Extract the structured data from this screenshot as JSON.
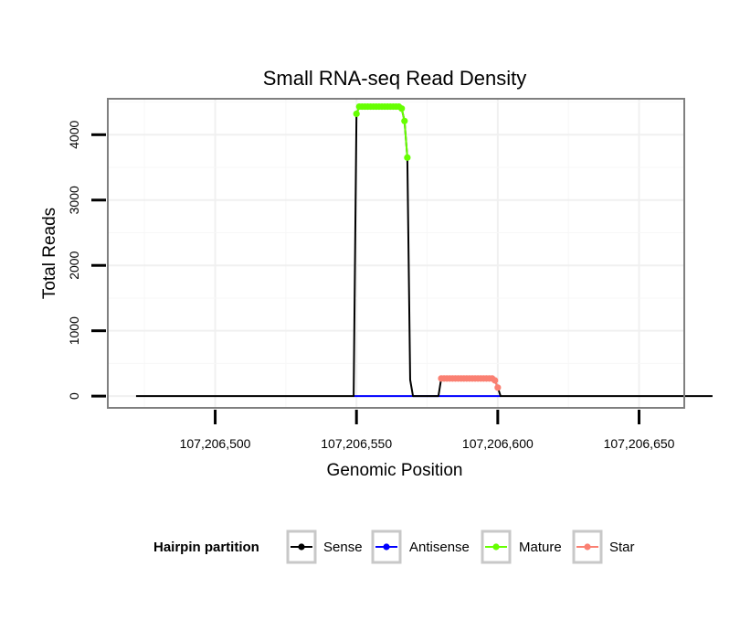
{
  "chart_data": {
    "type": "line",
    "title": "Small RNA-seq Read Density",
    "xlabel": "Genomic Position",
    "ylabel": "Total Reads",
    "xlim": [
      107206462,
      107206666
    ],
    "ylim": [
      -180,
      4550
    ],
    "x_ticks": [
      107206500,
      107206550,
      107206600,
      107206650
    ],
    "x_tick_labels": [
      "107,206,500",
      "107,206,550",
      "107,206,600",
      "107,206,650"
    ],
    "y_ticks": [
      0,
      1000,
      2000,
      3000,
      4000
    ],
    "y_tick_labels": [
      "0",
      "1000",
      "2000",
      "3000",
      "4000"
    ],
    "grid": true,
    "legend_position": "bottom",
    "legend_title": "Hairpin partition",
    "colors": {
      "Sense": "#000000",
      "Antisense": "#0000ff",
      "Mature": "#66ff00",
      "Star": "#fa8072"
    },
    "series": [
      {
        "name": "Sense",
        "markers": false,
        "x": [
          107206472,
          107206549,
          107206550,
          107206551,
          107206552,
          107206553,
          107206554,
          107206555,
          107206556,
          107206557,
          107206558,
          107206559,
          107206560,
          107206561,
          107206562,
          107206563,
          107206564,
          107206565,
          107206566,
          107206567,
          107206568,
          107206569,
          107206570,
          107206579,
          107206580,
          107206581,
          107206582,
          107206583,
          107206584,
          107206585,
          107206586,
          107206587,
          107206588,
          107206589,
          107206590,
          107206591,
          107206592,
          107206593,
          107206594,
          107206595,
          107206596,
          107206597,
          107206598,
          107206599,
          107206600,
          107206601,
          107206676
        ],
        "values": [
          0,
          0,
          4320,
          4430,
          4430,
          4430,
          4430,
          4430,
          4430,
          4430,
          4430,
          4430,
          4430,
          4430,
          4430,
          4430,
          4430,
          4430,
          4400,
          4210,
          3650,
          250,
          0,
          0,
          270,
          270,
          270,
          270,
          270,
          270,
          270,
          270,
          270,
          270,
          270,
          270,
          270,
          270,
          270,
          270,
          270,
          270,
          270,
          240,
          130,
          0,
          0
        ]
      },
      {
        "name": "Antisense",
        "markers": false,
        "x": [
          107206549,
          107206601
        ],
        "values": [
          0,
          0
        ]
      },
      {
        "name": "Mature",
        "markers": true,
        "x": [
          107206550,
          107206551,
          107206552,
          107206553,
          107206554,
          107206555,
          107206556,
          107206557,
          107206558,
          107206559,
          107206560,
          107206561,
          107206562,
          107206563,
          107206564,
          107206565,
          107206566,
          107206567,
          107206568
        ],
        "values": [
          4320,
          4430,
          4430,
          4430,
          4430,
          4430,
          4430,
          4430,
          4430,
          4430,
          4430,
          4430,
          4430,
          4430,
          4430,
          4430,
          4400,
          4210,
          3650
        ]
      },
      {
        "name": "Star",
        "markers": true,
        "x": [
          107206580,
          107206581,
          107206582,
          107206583,
          107206584,
          107206585,
          107206586,
          107206587,
          107206588,
          107206589,
          107206590,
          107206591,
          107206592,
          107206593,
          107206594,
          107206595,
          107206596,
          107206597,
          107206598,
          107206599,
          107206600
        ],
        "values": [
          270,
          270,
          270,
          270,
          270,
          270,
          270,
          270,
          270,
          270,
          270,
          270,
          270,
          270,
          270,
          270,
          270,
          270,
          270,
          240,
          130
        ]
      }
    ]
  }
}
